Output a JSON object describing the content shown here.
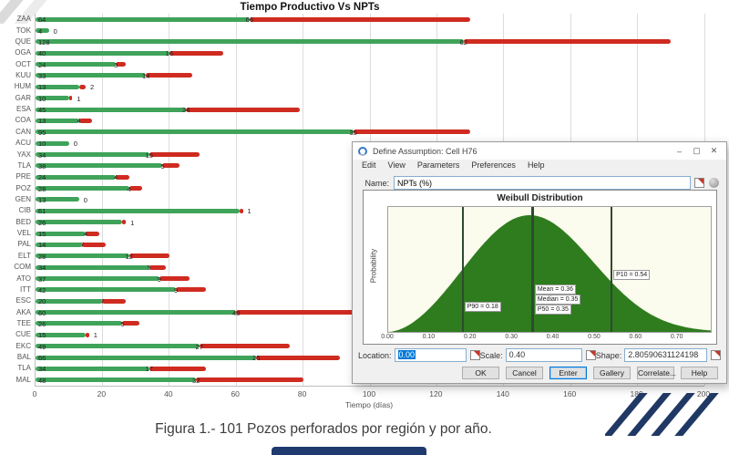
{
  "page": {
    "caption": "Figura 1.- 101 Pozos perforados por región y por año."
  },
  "chart_data": [
    {
      "type": "bar",
      "orientation": "horizontal",
      "stacked": true,
      "title": "Tiempo Productivo Vs NPTs",
      "xlabel": "Tiempo (días)",
      "xlim": [
        0,
        200
      ],
      "xticks": [
        0,
        20,
        40,
        60,
        80,
        100,
        120,
        140,
        160,
        180,
        200
      ],
      "grid": true,
      "value_labels": true,
      "categories": [
        "ZAA",
        "TOK",
        "QUE",
        "OGA",
        "OCT",
        "KUU",
        "HUM",
        "GAR",
        "ESA",
        "COA",
        "CAN",
        "ACU",
        "YAX",
        "TLA",
        "PRE",
        "POZ",
        "GEN",
        "CIB",
        "BED",
        "VEL",
        "PAL",
        "ELT",
        "COM",
        "ATO",
        "ITT",
        "ESC",
        "AKA",
        "TEE",
        "CUE",
        "EKC",
        "BAL",
        "TLA",
        "MAL"
      ],
      "series": [
        {
          "name": "Tiempo Productivo",
          "color": "#3fa35a",
          "values": [
            64,
            4,
            128,
            40,
            24,
            33,
            13,
            10,
            45,
            13,
            95,
            10,
            34,
            38,
            24,
            28,
            13,
            61,
            26,
            15,
            14,
            28,
            34,
            37,
            42,
            20,
            60,
            26,
            15,
            49,
            66,
            34,
            48
          ]
        },
        {
          "name": "NPTs",
          "color": "#cf2b20",
          "values": [
            66,
            0,
            62,
            16,
            3,
            14,
            2,
            1,
            34,
            4,
            35,
            0,
            15,
            5,
            4,
            4,
            0,
            1,
            1,
            4,
            7,
            12,
            5,
            9,
            9,
            7,
            48,
            5,
            1,
            27,
            25,
            17,
            32
          ]
        }
      ]
    },
    {
      "type": "area",
      "title": "Weibull Distribution",
      "ylabel": "Probability",
      "xlim": [
        0,
        0.78
      ],
      "xticks": [
        "0.00",
        "0.10",
        "0.20",
        "0.30",
        "0.40",
        "0.50",
        "0.60",
        "0.70"
      ],
      "curve_color": "#2e7c1e",
      "distribution": {
        "name": "Weibull",
        "location": 0.0,
        "scale": 0.4,
        "shape": 2.80590631124198
      },
      "markers": [
        {
          "x": 0.18,
          "labels": [
            "P90 = 0.18"
          ],
          "label_y": 0.76,
          "thick": false
        },
        {
          "x": 0.35,
          "labels": [
            "Mean = 0.36",
            "Median = 0.35",
            "P50 = 0.35"
          ],
          "label_y": 0.62,
          "thick": true
        },
        {
          "x": 0.54,
          "labels": [
            "P10 = 0.54"
          ],
          "label_y": 0.5,
          "thick": false
        }
      ]
    }
  ],
  "dialog": {
    "title": "Define Assumption: Cell H76",
    "window_controls": {
      "minimize": "–",
      "maximize": "▢",
      "close": "✕"
    },
    "menu": [
      "Edit",
      "View",
      "Parameters",
      "Preferences",
      "Help"
    ],
    "name_label": "Name:",
    "name_value": "NPTs (%)",
    "fields": [
      {
        "label": "Location:",
        "value": "0.00",
        "selected": true
      },
      {
        "label": "Scale:",
        "value": "0.40",
        "selected": false
      },
      {
        "label": "Shape:",
        "value": "2.80590631124198",
        "selected": false
      }
    ],
    "buttons": [
      "OK",
      "Cancel",
      "Enter",
      "Gallery",
      "Correlate...",
      "Help"
    ]
  }
}
